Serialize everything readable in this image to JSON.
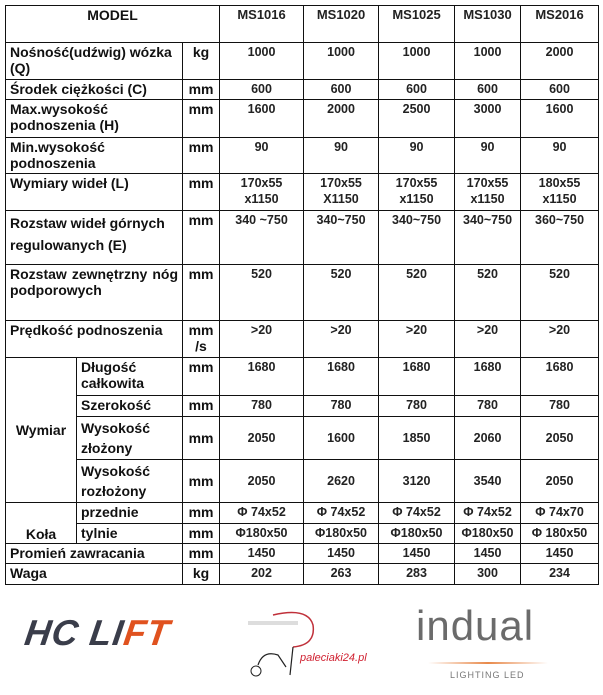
{
  "header": {
    "model_label": "MODEL",
    "models": [
      "MS1016",
      "MS1020",
      "MS1025",
      "MS1030",
      "MS2016"
    ]
  },
  "rows": [
    {
      "label": "Nośność(udźwig) wózka (Q)",
      "unit": "kg",
      "values": [
        "1000",
        "1000",
        "1000",
        "1000",
        "2000"
      ]
    },
    {
      "label": "Środek ciężkości (C)",
      "unit": "mm",
      "values": [
        "600",
        "600",
        "600",
        "600",
        "600"
      ]
    },
    {
      "label": "Max.wysokość podnoszenia (H)",
      "unit": "mm",
      "values": [
        "1600",
        "2000",
        "2500",
        "3000",
        "1600"
      ]
    },
    {
      "label": "Min.wysokość podnoszenia",
      "unit": "mm",
      "values": [
        "90",
        "90",
        "90",
        "90",
        "90"
      ]
    },
    {
      "label": "Wymiary wideł (L)",
      "unit": "mm",
      "values": [
        "170x55 x1150",
        "170x55 X1150",
        "170x55 x1150",
        "170x55 x1150",
        "180x55 x1150"
      ]
    },
    {
      "label": "Rozstaw wideł górnych regulowanych (E)",
      "unit": "mm",
      "values": [
        "340 ~750",
        "340~750",
        "340~750",
        "340~750",
        "360~750"
      ]
    },
    {
      "label": "Rozstaw zewnętrzny nóg podporowych",
      "unit": "mm",
      "values": [
        "520",
        "520",
        "520",
        "520",
        "520"
      ]
    },
    {
      "label": "Prędkość podnoszenia",
      "unit": "mm /s",
      "values": [
        ">20",
        ">20",
        ">20",
        ">20",
        ">20"
      ]
    }
  ],
  "wymiar": {
    "label": "Wymiar",
    "rows": [
      {
        "label": "Długość całkowita",
        "unit": "mm",
        "values": [
          "1680",
          "1680",
          "1680",
          "1680",
          "1680"
        ]
      },
      {
        "label": "Szerokość",
        "unit": "mm",
        "values": [
          "780",
          "780",
          "780",
          "780",
          "780"
        ]
      },
      {
        "label": "Wysokość złożony",
        "unit": "mm",
        "values": [
          "2050",
          "1600",
          "1850",
          "2060",
          "2050"
        ]
      },
      {
        "label": "Wysokość rozłożony",
        "unit": "mm",
        "values": [
          "2050",
          "2620",
          "3120",
          "3540",
          "2050"
        ]
      }
    ]
  },
  "kola": {
    "label": "Koła",
    "rows": [
      {
        "label": "przednie",
        "unit": "mm",
        "values": [
          "Φ 74x52",
          "Φ 74x52",
          "Φ 74x52",
          "Φ 74x52",
          "Φ 74x70"
        ]
      },
      {
        "label": "tylnie",
        "unit": "mm",
        "values": [
          "Φ180x50",
          "Φ180x50",
          "Φ180x50",
          "Φ180x50",
          "Φ 180x50"
        ]
      }
    ]
  },
  "tail_rows": [
    {
      "label": "Promień zawracania",
      "unit": "mm",
      "values": [
        "1450",
        "1450",
        "1450",
        "1450",
        "1450"
      ]
    },
    {
      "label": "Waga",
      "unit": "kg",
      "values": [
        "202",
        "263",
        "283",
        "300",
        "234"
      ]
    }
  ],
  "logos": {
    "hclift": {
      "text_a": "HC LI",
      "text_b": "FT"
    },
    "paleciaki": {
      "text": "paleciaki24.pl"
    },
    "indual": {
      "text": "indual",
      "sub": "LIGHTING LED"
    }
  }
}
